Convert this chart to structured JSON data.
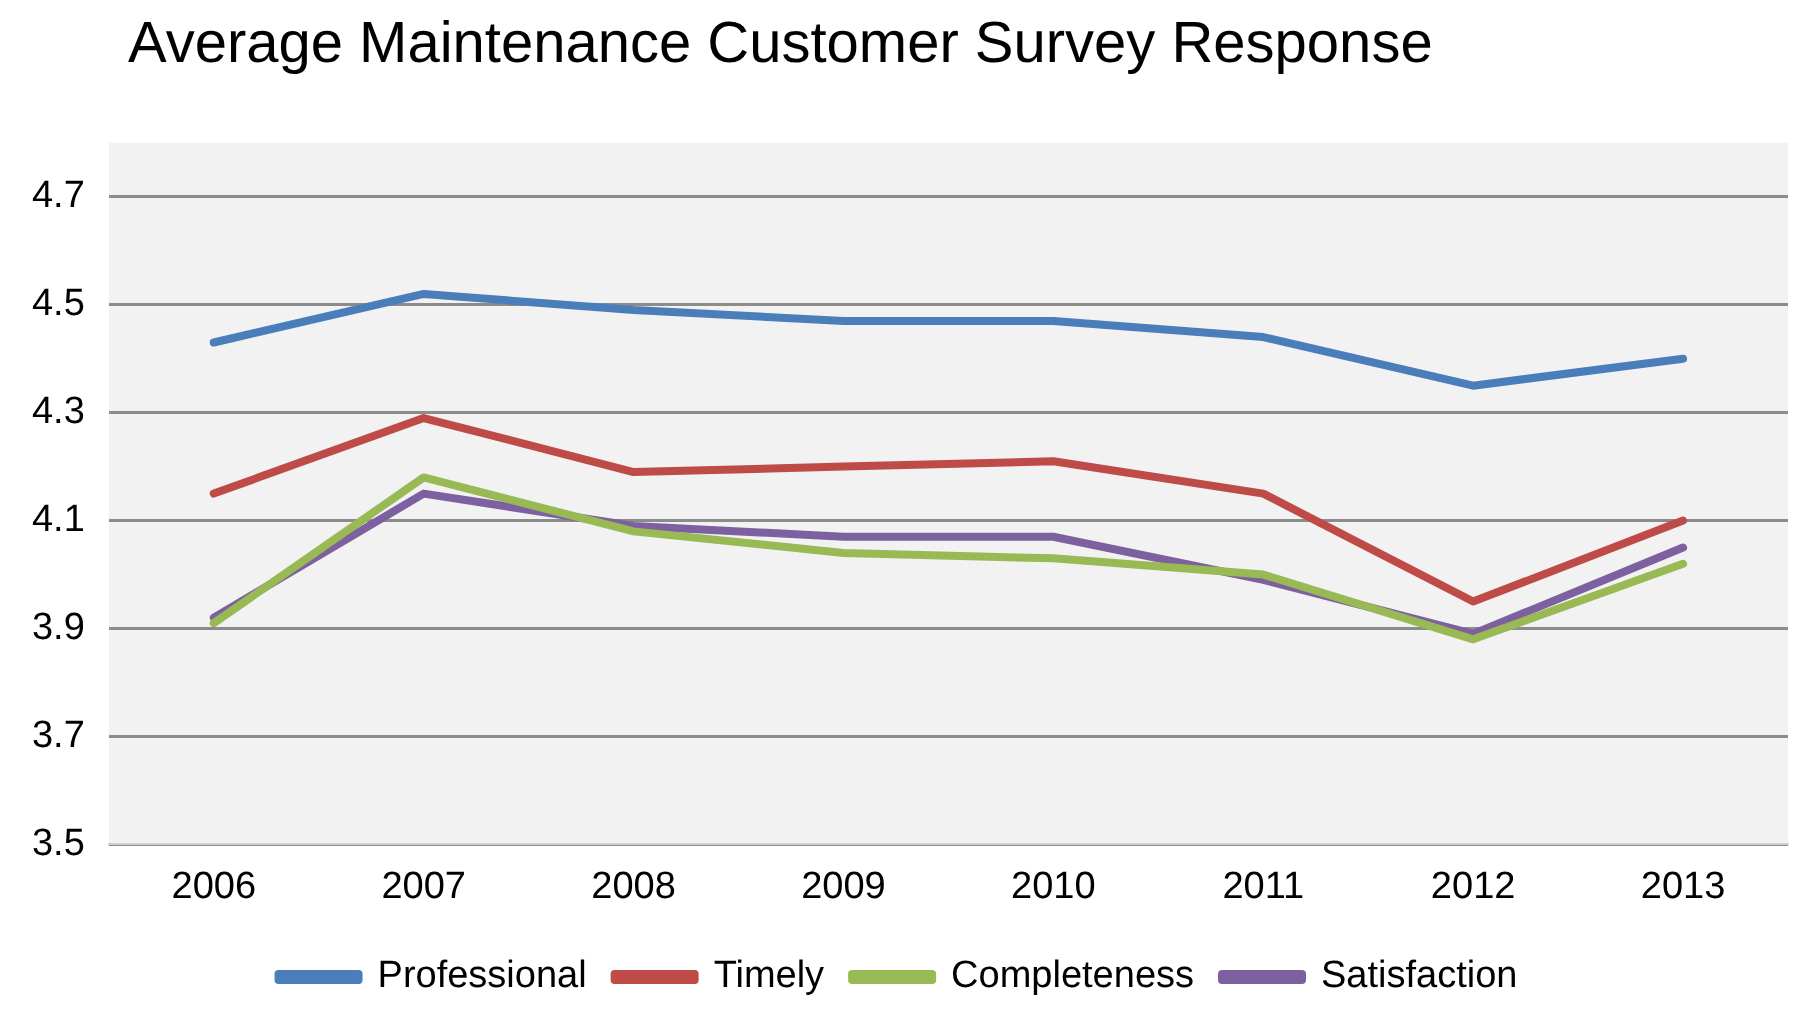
{
  "chart_data": {
    "type": "line",
    "title": "Average Maintenance Customer Survey Response",
    "categories": [
      "2006",
      "2007",
      "2008",
      "2009",
      "2010",
      "2011",
      "2012",
      "2013"
    ],
    "series": [
      {
        "name": "Professional",
        "color": "#4a7ebb",
        "values": [
          4.43,
          4.52,
          4.49,
          4.47,
          4.47,
          4.44,
          4.35,
          4.4
        ]
      },
      {
        "name": "Timely",
        "color": "#be4b48",
        "values": [
          4.15,
          4.29,
          4.19,
          4.2,
          4.21,
          4.15,
          3.95,
          4.1
        ]
      },
      {
        "name": "Completeness",
        "color": "#98b954",
        "values": [
          3.91,
          4.18,
          4.08,
          4.04,
          4.03,
          4.0,
          3.88,
          4.02
        ]
      },
      {
        "name": "Satisfaction",
        "color": "#7d60a0",
        "values": [
          3.92,
          4.15,
          4.09,
          4.07,
          4.07,
          3.99,
          3.89,
          4.05
        ]
      }
    ],
    "ylim": [
      3.5,
      4.8
    ],
    "yticks": [
      {
        "value": 3.5,
        "label": "3.5"
      },
      {
        "value": 3.7,
        "label": "3.7"
      },
      {
        "value": 3.9,
        "label": "3.9"
      },
      {
        "value": 4.1,
        "label": "4.1"
      },
      {
        "value": 4.3,
        "label": "4.3"
      },
      {
        "value": 4.5,
        "label": "4.5"
      },
      {
        "value": 4.7,
        "label": "4.7"
      }
    ],
    "grid": "y",
    "legend": "bottom",
    "marker": "none",
    "line_style": "solid"
  }
}
